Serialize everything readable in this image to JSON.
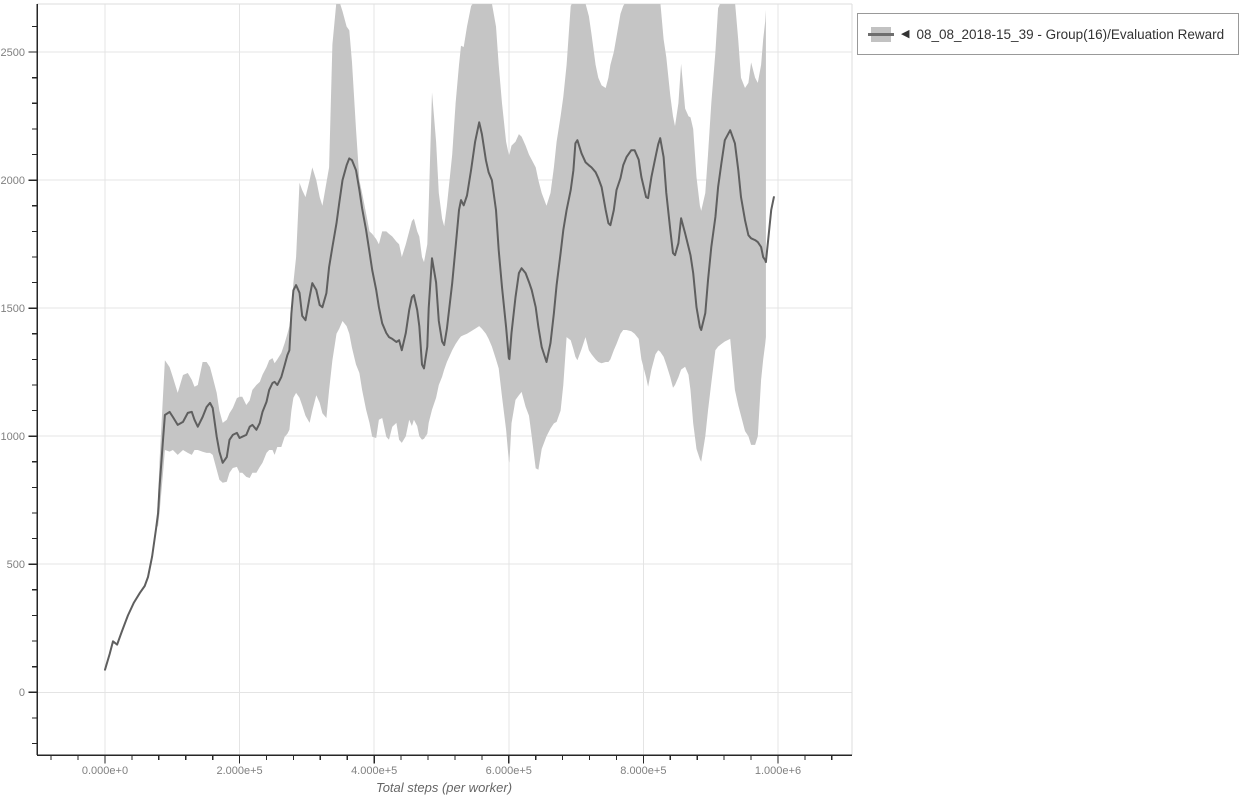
{
  "colors": {
    "background": "#ffffff",
    "grid": "#e4e4e4",
    "plot_border": "#dedede",
    "axis": "#262626",
    "tick_label": "#808080",
    "axis_title": "#666666",
    "legend_border": "#999999",
    "legend_text": "#333333",
    "series_line": "#5f5f5f",
    "series_band": "#c5c5c5"
  },
  "legend": {
    "toggle_icon": "◀",
    "label": "08_08_2018-15_39 - Group(16)/Evaluation Reward"
  },
  "chart_data": {
    "type": "line",
    "title": "",
    "xlabel": "Total steps (per worker)",
    "ylabel": "",
    "grid": true,
    "legend_position": "top-right-outside",
    "xlim": [
      -101000,
      1110000
    ],
    "ylim": [
      -245,
      2688
    ],
    "x_axis": {
      "major_ticks": [
        0,
        200000,
        400000,
        600000,
        800000,
        1000000
      ],
      "major_labels": [
        "0.000e+0",
        "2.000e+5",
        "4.000e+5",
        "6.000e+5",
        "8.000e+5",
        "1.000e+6"
      ],
      "minor_tick_start": -80000,
      "minor_tick_step": 40000,
      "minor_tick_end": 1080000
    },
    "y_axis": {
      "major_ticks": [
        0,
        500,
        1000,
        1500,
        2000,
        2500
      ],
      "major_labels": [
        "0",
        "500",
        "1000",
        "1500",
        "2000",
        "2500"
      ],
      "minor_tick_start": -200,
      "minor_tick_step": 100,
      "minor_tick_end": 2600
    },
    "series": [
      {
        "name": "08_08_2018-15_39 - Group(16)/Evaluation Reward",
        "line_color": "#5f5f5f",
        "band_color": "#c5c5c5",
        "steps_thousands": [
          0,
          7,
          12,
          18,
          25,
          34,
          43,
          52,
          59,
          64,
          70,
          76,
          79,
          81,
          86,
          89,
          96,
          101,
          108,
          116,
          123,
          129,
          133,
          138,
          145,
          151,
          156,
          160,
          166,
          170,
          175,
          181,
          185,
          190,
          196,
          200,
          204,
          210,
          215,
          219,
          225,
          230,
          234,
          240,
          244,
          249,
          252,
          256,
          262,
          267,
          271,
          274,
          277,
          280,
          284,
          289,
          293,
          298,
          304,
          308,
          314,
          319,
          323,
          329,
          333,
          338,
          344,
          348,
          353,
          359,
          363,
          367,
          373,
          378,
          382,
          388,
          393,
          397,
          403,
          407,
          412,
          418,
          422,
          427,
          433,
          437,
          441,
          447,
          452,
          456,
          459,
          464,
          467,
          471,
          474,
          479,
          481,
          486,
          492,
          496,
          501,
          504,
          508,
          516,
          521,
          526,
          529,
          533,
          538,
          544,
          550,
          556,
          560,
          566,
          570,
          575,
          581,
          585,
          590,
          596,
          600,
          601,
          604,
          610,
          615,
          619,
          625,
          630,
          634,
          640,
          644,
          649,
          656,
          662,
          667,
          671,
          677,
          681,
          686,
          692,
          696,
          699,
          702,
          708,
          714,
          719,
          723,
          729,
          733,
          738,
          744,
          748,
          751,
          756,
          760,
          766,
          770,
          775,
          782,
          787,
          793,
          797,
          804,
          807,
          812,
          818,
          822,
          825,
          830,
          834,
          840,
          844,
          847,
          852,
          856,
          862,
          867,
          870,
          874,
          879,
          884,
          886,
          892,
          896,
          901,
          907,
          911,
          916,
          921,
          929,
          936,
          941,
          945,
          951,
          956,
          960,
          966,
          970,
          975,
          978,
          981,
          982,
          990,
          994
        ],
        "mean": [
          88,
          150,
          199,
          186,
          237,
          300,
          350,
          389,
          415,
          450,
          530,
          640,
          700,
          800,
          980,
          1083,
          1095,
          1075,
          1044,
          1056,
          1091,
          1095,
          1064,
          1037,
          1075,
          1114,
          1130,
          1110,
          998,
          940,
          896,
          919,
          986,
          1005,
          1013,
          993,
          998,
          1005,
          1037,
          1044,
          1025,
          1052,
          1095,
          1134,
          1181,
          1208,
          1212,
          1200,
          1231,
          1278,
          1317,
          1336,
          1480,
          1570,
          1590,
          1560,
          1470,
          1453,
          1543,
          1598,
          1571,
          1512,
          1504,
          1559,
          1661,
          1739,
          1832,
          1910,
          2000,
          2058,
          2085,
          2078,
          2039,
          1961,
          1890,
          1805,
          1719,
          1649,
          1571,
          1504,
          1441,
          1403,
          1387,
          1380,
          1368,
          1375,
          1336,
          1403,
          1493,
          1543,
          1551,
          1493,
          1430,
          1280,
          1265,
          1350,
          1500,
          1695,
          1600,
          1450,
          1370,
          1356,
          1420,
          1598,
          1739,
          1883,
          1922,
          1902,
          1940,
          2040,
          2150,
          2226,
          2180,
          2078,
          2031,
          2000,
          1883,
          1727,
          1582,
          1426,
          1305,
          1301,
          1403,
          1543,
          1637,
          1656,
          1637,
          1602,
          1571,
          1504,
          1426,
          1348,
          1290,
          1364,
          1481,
          1590,
          1715,
          1805,
          1883,
          1961,
          2039,
          2144,
          2156,
          2105,
          2070,
          2058,
          2050,
          2031,
          2008,
          1973,
          1883,
          1832,
          1824,
          1883,
          1961,
          2008,
          2058,
          2090,
          2117,
          2117,
          2080,
          2012,
          1934,
          1930,
          2012,
          2090,
          2140,
          2164,
          2090,
          1950,
          1805,
          1715,
          1707,
          1754,
          1851,
          1793,
          1739,
          1707,
          1637,
          1504,
          1426,
          1415,
          1481,
          1609,
          1739,
          1856,
          1973,
          2066,
          2156,
          2195,
          2144,
          2039,
          1934,
          1844,
          1785,
          1773,
          1766,
          1758,
          1739,
          1699,
          1688,
          1680,
          1883,
          1934
        ],
        "band_lo": [
          88,
          150,
          199,
          186,
          237,
          300,
          350,
          389,
          415,
          450,
          530,
          640,
          650,
          700,
          850,
          946,
          940,
          946,
          927,
          946,
          935,
          927,
          946,
          946,
          939,
          935,
          935,
          927,
          869,
          830,
          818,
          822,
          857,
          876,
          880,
          857,
          857,
          841,
          837,
          857,
          857,
          880,
          896,
          935,
          946,
          946,
          927,
          958,
          958,
          998,
          1010,
          1025,
          1100,
          1150,
          1169,
          1150,
          1120,
          1080,
          1052,
          1100,
          1160,
          1130,
          1090,
          1071,
          1180,
          1297,
          1400,
          1420,
          1450,
          1430,
          1400,
          1345,
          1280,
          1247,
          1181,
          1103,
          1052,
          998,
          993,
          1064,
          1071,
          998,
          986,
          1037,
          1052,
          986,
          974,
          1000,
          1064,
          1040,
          1064,
          1040,
          1000,
          986,
          990,
          1010,
          1052,
          1103,
          1150,
          1200,
          1232,
          1260,
          1290,
          1336,
          1360,
          1380,
          1390,
          1395,
          1400,
          1410,
          1420,
          1430,
          1420,
          1400,
          1380,
          1350,
          1300,
          1265,
          1154,
          1025,
          905,
          896,
          1050,
          1142,
          1160,
          1173,
          1115,
          1080,
          1000,
          875,
          869,
          950,
          1000,
          1030,
          1050,
          1056,
          1100,
          1200,
          1387,
          1375,
          1340,
          1310,
          1297,
          1340,
          1387,
          1336,
          1320,
          1300,
          1290,
          1285,
          1290,
          1290,
          1300,
          1336,
          1360,
          1400,
          1415,
          1415,
          1410,
          1400,
          1380,
          1300,
          1230,
          1193,
          1260,
          1320,
          1336,
          1330,
          1310,
          1280,
          1230,
          1189,
          1200,
          1230,
          1260,
          1271,
          1240,
          1180,
          1050,
          950,
          910,
          900,
          1000,
          1100,
          1208,
          1336,
          1350,
          1360,
          1370,
          1380,
          1181,
          1120,
          1080,
          1020,
          1000,
          966,
          966,
          1000,
          1220,
          1300,
          1360,
          1387,
          null,
          null
        ],
        "band_hi": [
          88,
          150,
          199,
          186,
          237,
          300,
          350,
          389,
          415,
          450,
          530,
          640,
          760,
          900,
          1150,
          1297,
          1270,
          1230,
          1169,
          1239,
          1247,
          1220,
          1193,
          1200,
          1290,
          1290,
          1270,
          1230,
          1169,
          1100,
          1052,
          1064,
          1090,
          1110,
          1149,
          1154,
          1154,
          1122,
          1140,
          1181,
          1200,
          1212,
          1240,
          1270,
          1297,
          1305,
          1285,
          1300,
          1325,
          1364,
          1400,
          1430,
          1500,
          1600,
          1700,
          1990,
          1961,
          1934,
          2000,
          2050,
          2000,
          1934,
          1900,
          1990,
          2050,
          2530,
          2700,
          2700,
          2660,
          2600,
          2585,
          2460,
          2200,
          2000,
          1950,
          1870,
          1800,
          1790,
          1770,
          1750,
          1800,
          1800,
          1790,
          1780,
          1760,
          1750,
          1700,
          1750,
          1800,
          1840,
          1850,
          1800,
          1780,
          1700,
          1680,
          1750,
          1900,
          2343,
          2150,
          1950,
          1850,
          1820,
          1900,
          2100,
          2300,
          2450,
          2525,
          2520,
          2600,
          2680,
          2700,
          2700,
          2700,
          2700,
          2700,
          2690,
          2600,
          2450,
          2300,
          2150,
          2100,
          2100,
          2135,
          2150,
          2180,
          2170,
          2135,
          2100,
          2080,
          2050,
          2000,
          1950,
          1900,
          1950,
          2050,
          2150,
          2250,
          2325,
          2450,
          2680,
          2700,
          2700,
          2700,
          2700,
          2690,
          2640,
          2570,
          2450,
          2400,
          2370,
          2360,
          2400,
          2450,
          2500,
          2560,
          2650,
          2680,
          2700,
          2700,
          2700,
          2700,
          2700,
          2700,
          2700,
          2700,
          2700,
          2700,
          2700,
          2550,
          2480,
          2330,
          2250,
          2211,
          2300,
          2455,
          2280,
          2250,
          2245,
          2200,
          2011,
          1900,
          1880,
          1950,
          2100,
          2300,
          2500,
          2672,
          2700,
          2700,
          2700,
          2700,
          2545,
          2400,
          2360,
          2380,
          2460,
          2400,
          2380,
          2450,
          2550,
          2620,
          2665,
          null,
          null
        ]
      }
    ]
  }
}
